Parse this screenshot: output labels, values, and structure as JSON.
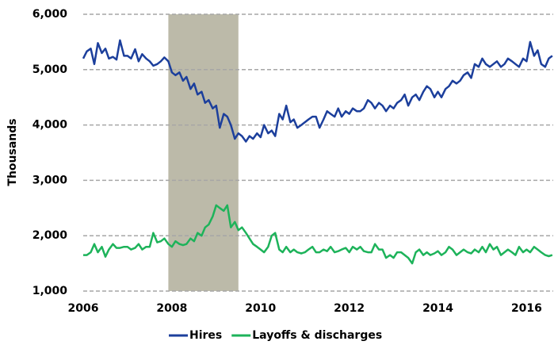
{
  "chart_data": {
    "type": "line",
    "ylabel": "Thousands",
    "xlim": [
      2006,
      2016.6
    ],
    "xticks": [
      2006,
      2008,
      2010,
      2012,
      2014,
      2016
    ],
    "ylim": [
      1000,
      6000
    ],
    "yticks": [
      {
        "value": 1000,
        "label": "1,000"
      },
      {
        "value": 2000,
        "label": "2,000"
      },
      {
        "value": 3000,
        "label": "3,000"
      },
      {
        "value": 4000,
        "label": "4,000"
      },
      {
        "value": 5000,
        "label": "5,000"
      },
      {
        "value": 6000,
        "label": "6,000"
      }
    ],
    "grid": true,
    "legend": "bottom",
    "shade": [
      2007.92,
      2009.5
    ],
    "shade_color": "#bcbaa9",
    "x": [
      2006,
      2006.08,
      2006.17,
      2006.25,
      2006.33,
      2006.42,
      2006.5,
      2006.58,
      2006.67,
      2006.75,
      2006.83,
      2006.92,
      2007,
      2007.08,
      2007.17,
      2007.25,
      2007.33,
      2007.42,
      2007.5,
      2007.58,
      2007.67,
      2007.75,
      2007.83,
      2007.92,
      2008,
      2008.08,
      2008.17,
      2008.25,
      2008.33,
      2008.42,
      2008.5,
      2008.58,
      2008.67,
      2008.75,
      2008.83,
      2008.92,
      2009,
      2009.08,
      2009.17,
      2009.25,
      2009.33,
      2009.42,
      2009.5,
      2009.58,
      2009.67,
      2009.75,
      2009.83,
      2009.92,
      2010,
      2010.08,
      2010.17,
      2010.25,
      2010.33,
      2010.42,
      2010.5,
      2010.58,
      2010.67,
      2010.75,
      2010.83,
      2010.92,
      2011,
      2011.08,
      2011.17,
      2011.25,
      2011.33,
      2011.42,
      2011.5,
      2011.58,
      2011.67,
      2011.75,
      2011.83,
      2011.92,
      2012,
      2012.08,
      2012.17,
      2012.25,
      2012.33,
      2012.42,
      2012.5,
      2012.58,
      2012.67,
      2012.75,
      2012.83,
      2012.92,
      2013,
      2013.08,
      2013.17,
      2013.25,
      2013.33,
      2013.42,
      2013.5,
      2013.58,
      2013.67,
      2013.75,
      2013.83,
      2013.92,
      2014,
      2014.08,
      2014.17,
      2014.25,
      2014.33,
      2014.42,
      2014.5,
      2014.58,
      2014.67,
      2014.75,
      2014.83,
      2014.92,
      2015,
      2015.08,
      2015.17,
      2015.25,
      2015.33,
      2015.42,
      2015.5,
      2015.58,
      2015.67,
      2015.75,
      2015.83,
      2015.92,
      2016,
      2016.08,
      2016.17,
      2016.25,
      2016.33,
      2016.42,
      2016.5,
      2016.58
    ],
    "series": [
      {
        "name": "Hires",
        "color": "#1c3f9c",
        "values": [
          5200,
          5330,
          5380,
          5100,
          5480,
          5300,
          5380,
          5200,
          5230,
          5180,
          5530,
          5250,
          5250,
          5200,
          5370,
          5150,
          5280,
          5200,
          5150,
          5070,
          5100,
          5150,
          5220,
          5150,
          4950,
          4900,
          4950,
          4800,
          4870,
          4650,
          4750,
          4550,
          4600,
          4400,
          4450,
          4300,
          4350,
          3950,
          4200,
          4150,
          4000,
          3750,
          3850,
          3800,
          3700,
          3800,
          3750,
          3850,
          3780,
          4000,
          3850,
          3900,
          3800,
          4200,
          4100,
          4350,
          4050,
          4100,
          3950,
          4000,
          4050,
          4100,
          4150,
          4150,
          3950,
          4100,
          4250,
          4200,
          4150,
          4300,
          4150,
          4250,
          4200,
          4300,
          4250,
          4250,
          4300,
          4450,
          4400,
          4300,
          4400,
          4350,
          4250,
          4350,
          4300,
          4400,
          4450,
          4550,
          4350,
          4500,
          4550,
          4450,
          4600,
          4700,
          4650,
          4500,
          4600,
          4500,
          4650,
          4700,
          4800,
          4750,
          4800,
          4900,
          4950,
          4850,
          5100,
          5050,
          5200,
          5100,
          5050,
          5100,
          5150,
          5050,
          5100,
          5200,
          5150,
          5100,
          5050,
          5200,
          5150,
          5500,
          5250,
          5350,
          5100,
          5050,
          5200,
          5250
        ]
      },
      {
        "name": "Layoffs & discharges",
        "color": "#1db35a",
        "values": [
          1650,
          1650,
          1700,
          1850,
          1700,
          1800,
          1620,
          1750,
          1850,
          1780,
          1780,
          1800,
          1800,
          1750,
          1780,
          1850,
          1750,
          1800,
          1800,
          2050,
          1880,
          1900,
          1950,
          1850,
          1800,
          1900,
          1850,
          1830,
          1850,
          1950,
          1900,
          2050,
          2000,
          2150,
          2200,
          2350,
          2550,
          2500,
          2450,
          2550,
          2150,
          2250,
          2100,
          2150,
          2050,
          1950,
          1850,
          1800,
          1750,
          1700,
          1800,
          2000,
          2050,
          1750,
          1700,
          1800,
          1700,
          1750,
          1700,
          1680,
          1700,
          1750,
          1800,
          1700,
          1700,
          1750,
          1720,
          1800,
          1700,
          1720,
          1750,
          1780,
          1700,
          1800,
          1750,
          1800,
          1720,
          1700,
          1700,
          1850,
          1750,
          1750,
          1600,
          1650,
          1600,
          1700,
          1700,
          1650,
          1600,
          1500,
          1700,
          1750,
          1650,
          1700,
          1650,
          1680,
          1720,
          1650,
          1700,
          1800,
          1750,
          1650,
          1700,
          1750,
          1700,
          1680,
          1750,
          1700,
          1800,
          1700,
          1850,
          1750,
          1800,
          1650,
          1700,
          1750,
          1700,
          1650,
          1800,
          1700,
          1750,
          1700,
          1800,
          1750,
          1700,
          1650,
          1630,
          1650
        ]
      }
    ]
  }
}
